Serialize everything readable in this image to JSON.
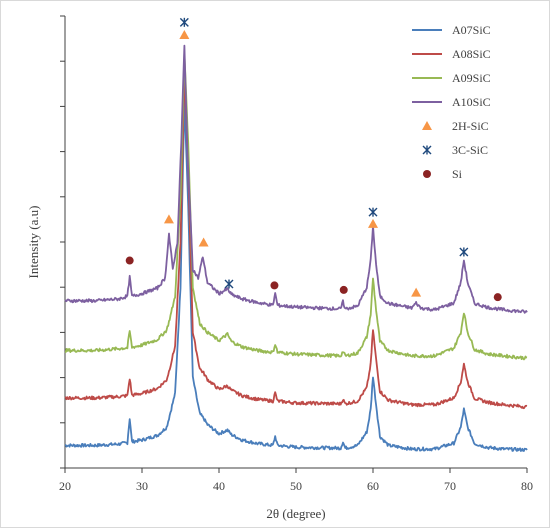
{
  "chart_data": {
    "type": "line",
    "title": "",
    "xlabel": "2θ (degree)",
    "ylabel": "Intensity (a.u)",
    "xlim": [
      20,
      80
    ],
    "xticks": [
      "20",
      "30",
      "40",
      "50",
      "60",
      "70",
      "80"
    ],
    "ylim": [
      0,
      100
    ],
    "y_tick_labels_shown": false,
    "grid": false,
    "legend_position": "top-right",
    "series": [
      {
        "name": "A07SiC",
        "color": "#4a7ebb",
        "x": [
          20,
          24,
          27,
          28.1,
          28.4,
          28.7,
          30,
          32,
          33.2,
          33.6,
          34.3,
          35.0,
          35.5,
          36.0,
          36.6,
          37.5,
          38.0,
          38.5,
          40.0,
          41.1,
          41.6,
          43.0,
          45.0,
          47.0,
          47.3,
          47.6,
          50.0,
          55.8,
          56.1,
          56.4,
          58.0,
          59.2,
          59.7,
          60.0,
          60.4,
          60.9,
          62.0,
          65.0,
          68.0,
          70.5,
          71.4,
          71.8,
          72.3,
          73.2,
          75.0,
          77.0,
          80.0
        ],
        "y": [
          5.0,
          5.0,
          5.3,
          5.6,
          11.0,
          5.8,
          6.2,
          7.2,
          9.0,
          11.7,
          16.5,
          40.0,
          82.0,
          58.0,
          20.0,
          12.0,
          11.0,
          9.6,
          7.6,
          8.4,
          7.4,
          6.2,
          5.4,
          5.0,
          7.0,
          5.0,
          4.6,
          4.4,
          5.8,
          4.4,
          5.0,
          8.0,
          13.0,
          20.3,
          14.0,
          7.0,
          5.0,
          4.2,
          4.2,
          5.5,
          9.0,
          13.0,
          9.0,
          5.4,
          4.5,
          4.2,
          4.0
        ]
      },
      {
        "name": "A08SiC",
        "color": "#be4b48",
        "x": [
          20,
          24,
          27,
          28.1,
          28.4,
          28.7,
          30,
          32,
          33.2,
          33.6,
          34.3,
          35.0,
          35.5,
          36.0,
          36.6,
          37.5,
          38.0,
          38.5,
          40.0,
          41.1,
          41.6,
          43.0,
          45.0,
          47.0,
          47.3,
          47.6,
          50.0,
          55.8,
          56.1,
          56.4,
          58.0,
          59.2,
          59.7,
          60.0,
          60.4,
          60.9,
          62.0,
          65.0,
          68.0,
          70.5,
          71.4,
          71.8,
          72.3,
          73.2,
          75.0,
          77.0,
          80.0
        ],
        "y": [
          15.5,
          15.5,
          15.8,
          16.0,
          19.8,
          16.1,
          16.5,
          17.6,
          19.5,
          22.0,
          27.0,
          50.0,
          88.0,
          66.0,
          30.0,
          22.0,
          21.0,
          19.6,
          17.4,
          18.2,
          17.2,
          16.0,
          15.2,
          14.8,
          16.6,
          14.8,
          14.4,
          14.2,
          15.2,
          14.2,
          14.8,
          17.8,
          23.0,
          30.6,
          24.0,
          17.0,
          15.0,
          14.0,
          14.0,
          15.5,
          19.0,
          23.0,
          19.0,
          15.4,
          14.5,
          14.0,
          13.5
        ]
      },
      {
        "name": "A09SiC",
        "color": "#98b954",
        "x": [
          20,
          24,
          27,
          28.1,
          28.4,
          28.7,
          30,
          32,
          33.2,
          33.6,
          34.3,
          35.0,
          35.5,
          36.0,
          36.6,
          37.5,
          38.0,
          38.5,
          40.0,
          41.1,
          41.6,
          43.0,
          45.0,
          47.0,
          47.3,
          47.6,
          50.0,
          55.8,
          56.1,
          56.4,
          58.0,
          59.2,
          59.7,
          60.0,
          60.4,
          60.9,
          62.0,
          65.0,
          68.0,
          70.5,
          71.4,
          71.8,
          72.3,
          73.2,
          75.0,
          77.0,
          80.0
        ],
        "y": [
          26.0,
          26.0,
          26.4,
          26.6,
          30.3,
          26.7,
          27.2,
          28.4,
          30.5,
          33.0,
          38.0,
          60.0,
          92.0,
          72.0,
          40.0,
          32.0,
          31.0,
          30.0,
          28.2,
          29.6,
          28.0,
          26.8,
          26.0,
          25.6,
          27.4,
          25.6,
          25.2,
          24.8,
          25.8,
          24.8,
          25.4,
          29.0,
          34.0,
          42.0,
          35.0,
          28.0,
          26.0,
          24.8,
          24.8,
          26.5,
          30.0,
          34.5,
          30.0,
          26.2,
          25.2,
          24.8,
          24.3
        ]
      },
      {
        "name": "A10SiC",
        "color": "#7d60a0",
        "x": [
          20,
          24,
          27,
          28.1,
          28.4,
          28.7,
          30,
          32,
          33.0,
          33.5,
          34.0,
          34.6,
          35.1,
          35.5,
          35.9,
          36.6,
          37.3,
          37.9,
          38.5,
          40.0,
          41.1,
          41.6,
          43.0,
          45.0,
          47.0,
          47.3,
          47.6,
          50.0,
          55.8,
          56.1,
          56.4,
          58.0,
          59.2,
          59.7,
          60.0,
          60.4,
          60.9,
          62.0,
          65.0,
          65.6,
          66.2,
          68.0,
          70.5,
          71.4,
          71.8,
          72.3,
          73.2,
          75.0,
          77.0,
          80.0
        ],
        "y": [
          37.0,
          37.0,
          37.4,
          38.0,
          42.2,
          38.0,
          38.6,
          39.8,
          42.0,
          51.8,
          44.0,
          50.0,
          72.0,
          93.4,
          70.0,
          44.0,
          42.0,
          46.8,
          41.0,
          38.6,
          39.6,
          38.4,
          37.4,
          36.6,
          36.0,
          38.6,
          36.0,
          35.6,
          35.2,
          36.8,
          35.2,
          35.8,
          40.0,
          46.0,
          53.4,
          45.0,
          38.0,
          36.4,
          35.4,
          36.5,
          35.4,
          35.0,
          36.5,
          41.0,
          46.0,
          41.0,
          36.4,
          35.5,
          35.0,
          34.5
        ]
      }
    ],
    "markers": [
      {
        "name": "2H-SiC",
        "shape": "triangle",
        "color": "#f79646",
        "x": [
          33.5,
          35.5,
          38.0,
          60.0,
          65.6
        ],
        "y": [
          55.0,
          95.8,
          49.9,
          54.0,
          38.8
        ]
      },
      {
        "name": "3C-SiC",
        "shape": "asterisk",
        "color": "#1f497d",
        "x": [
          35.5,
          41.3,
          60.0,
          71.8
        ],
        "y": [
          98.6,
          40.7,
          56.6,
          47.8
        ]
      },
      {
        "name": "Si",
        "shape": "circle",
        "color": "#8b2323",
        "x": [
          28.4,
          47.2,
          56.2,
          76.2
        ],
        "y": [
          45.9,
          40.4,
          39.4,
          37.8
        ]
      }
    ]
  }
}
